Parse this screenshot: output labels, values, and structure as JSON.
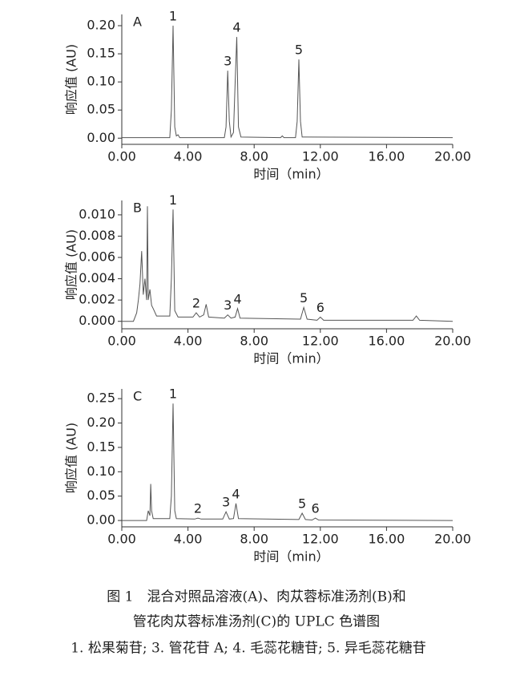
{
  "chart_data": [
    {
      "type": "line",
      "panel": "A",
      "ylabel": "响应值 (AU)",
      "xlabel": "时间（min）",
      "x": [
        0,
        2.9,
        3.0,
        3.1,
        3.2,
        3.3,
        3.4,
        3.5,
        6.2,
        6.3,
        6.4,
        6.5,
        6.6,
        6.75,
        6.85,
        6.95,
        7.05,
        7.2,
        9.6,
        9.7,
        9.8,
        10.5,
        10.6,
        10.7,
        10.8,
        10.9,
        20
      ],
      "series": [
        {
          "color": "#555555",
          "values": [
            0.001,
            0.001,
            0.05,
            0.2,
            0.02,
            0.004,
            0.006,
            0.001,
            0.001,
            0.02,
            0.12,
            0.03,
            0.002,
            0.01,
            0.1,
            0.18,
            0.02,
            0.002,
            0.001,
            0.004,
            0.001,
            0.001,
            0.03,
            0.14,
            0.03,
            0.002,
            0.001
          ]
        }
      ],
      "peaks": [
        {
          "label": "1",
          "x": 3.1
        },
        {
          "label": "3",
          "x": 6.4
        },
        {
          "label": "4",
          "x": 6.95
        },
        {
          "label": "5",
          "x": 10.7
        }
      ],
      "xlim": [
        0,
        20
      ],
      "ylim": [
        -0.011,
        0.22
      ],
      "xticks": [
        {
          "value": 0,
          "label": "0.00"
        },
        {
          "value": 4,
          "label": "4.00"
        },
        {
          "value": 8,
          "label": "8.00"
        },
        {
          "value": 12,
          "label": "12.00"
        },
        {
          "value": 16,
          "label": "16.00"
        },
        {
          "value": 20,
          "label": "20.00"
        }
      ],
      "yticks": [
        {
          "value": 0,
          "label": "0.00"
        },
        0.05,
        {
          "value": 0.1,
          "label": "0.10"
        },
        0.15,
        {
          "value": 0.2,
          "label": "0.20"
        }
      ]
    },
    {
      "type": "line",
      "panel": "B",
      "ylabel": "响应值 (AU)",
      "xlabel": "时间（min）",
      "x": [
        0,
        0.7,
        0.9,
        1.0,
        1.1,
        1.2,
        1.3,
        1.4,
        1.5,
        1.55,
        1.6,
        1.7,
        1.8,
        1.9,
        2.1,
        2.9,
        3.0,
        3.1,
        3.2,
        3.4,
        4.3,
        4.5,
        4.7,
        4.95,
        5.1,
        5.25,
        6.2,
        6.4,
        6.6,
        6.85,
        7.0,
        7.15,
        10.8,
        11.0,
        11.2,
        11.8,
        12.0,
        12.2,
        17.6,
        17.8,
        18.0,
        20
      ],
      "series": [
        {
          "color": "#555555",
          "values": [
            0,
            0,
            0.0008,
            0.002,
            0.0035,
            0.0066,
            0.0025,
            0.004,
            0.002,
            0.0108,
            0.002,
            0.003,
            0.0015,
            0.0012,
            0.0005,
            0.0005,
            0.004,
            0.0105,
            0.001,
            0.0004,
            0.0004,
            0.0008,
            0.0004,
            0.0006,
            0.0016,
            0.0004,
            0.0003,
            0.0006,
            0.0003,
            0.0004,
            0.0012,
            0.0003,
            0.0002,
            0.0013,
            0.0002,
            0.0001,
            0.0004,
            0.0001,
            0.0001,
            0.0005,
            0.0001,
            0
          ]
        }
      ],
      "peaks": [
        {
          "label": "1",
          "x": 3.1
        },
        {
          "label": "2",
          "x": 4.5
        },
        {
          "label": "3",
          "x": 6.4
        },
        {
          "label": "4",
          "x": 7.0
        },
        {
          "label": "5",
          "x": 11.0
        },
        {
          "label": "6",
          "x": 12.0
        }
      ],
      "xlim": [
        0,
        20
      ],
      "ylim": [
        -0.0007,
        0.01135
      ],
      "xticks": [
        {
          "value": 0,
          "label": "0.00"
        },
        {
          "value": 4,
          "label": "4.00"
        },
        {
          "value": 8,
          "label": "8.00"
        },
        {
          "value": 12,
          "label": "12.00"
        },
        {
          "value": 16,
          "label": "16.00"
        },
        {
          "value": 20,
          "label": "20.00"
        }
      ],
      "yticks": [
        {
          "value": 0,
          "label": "0.000"
        },
        0.002,
        0.004,
        0.006,
        0.008,
        {
          "value": 0.01,
          "label": "0.010"
        }
      ]
    },
    {
      "type": "line",
      "panel": "C",
      "ylabel": "响应值 (AU)",
      "xlabel": "时间（min）",
      "x": [
        0,
        1.5,
        1.6,
        1.7,
        1.75,
        1.8,
        1.9,
        2.9,
        3.0,
        3.1,
        3.2,
        3.3,
        4.4,
        4.6,
        4.8,
        6.1,
        6.3,
        6.5,
        6.75,
        6.9,
        7.05,
        10.7,
        10.9,
        11.1,
        11.5,
        11.7,
        11.9,
        20
      ],
      "series": [
        {
          "color": "#555555",
          "values": [
            0,
            0,
            0.02,
            0.01,
            0.075,
            0.02,
            0.004,
            0.004,
            0.05,
            0.24,
            0.02,
            0.004,
            0.003,
            0.005,
            0.003,
            0.003,
            0.018,
            0.003,
            0.004,
            0.035,
            0.004,
            0.002,
            0.015,
            0.002,
            0.001,
            0.005,
            0.001,
            0
          ]
        }
      ],
      "peaks": [
        {
          "label": "1",
          "x": 3.1
        },
        {
          "label": "2",
          "x": 4.6
        },
        {
          "label": "3",
          "x": 6.3
        },
        {
          "label": "4",
          "x": 6.9
        },
        {
          "label": "5",
          "x": 10.9
        },
        {
          "label": "6",
          "x": 11.7
        }
      ],
      "xlim": [
        0,
        20
      ],
      "ylim": [
        -0.013,
        0.27
      ],
      "xticks": [
        {
          "value": 0,
          "label": "0.00"
        },
        {
          "value": 4,
          "label": "4.00"
        },
        {
          "value": 8,
          "label": "8.00"
        },
        {
          "value": 12,
          "label": "12.00"
        },
        {
          "value": 16,
          "label": "16.00"
        },
        {
          "value": 20,
          "label": "20.00"
        }
      ],
      "yticks": [
        {
          "value": 0,
          "label": "0.00"
        },
        0.05,
        {
          "value": 0.1,
          "label": "0.10"
        },
        0.15,
        {
          "value": 0.2,
          "label": "0.20"
        },
        0.25
      ]
    }
  ],
  "caption": {
    "lines": [
      "图 1　混合对照品溶液(A)、肉苁蓉标准汤剂(B)和",
      "管花肉苁蓉标准汤剂(C)的 UPLC 色谱图",
      "1. 松果菊苷; 3. 管花苷 A; 4. 毛蕊花糖苷; 5. 异毛蕊花糖苷"
    ]
  }
}
